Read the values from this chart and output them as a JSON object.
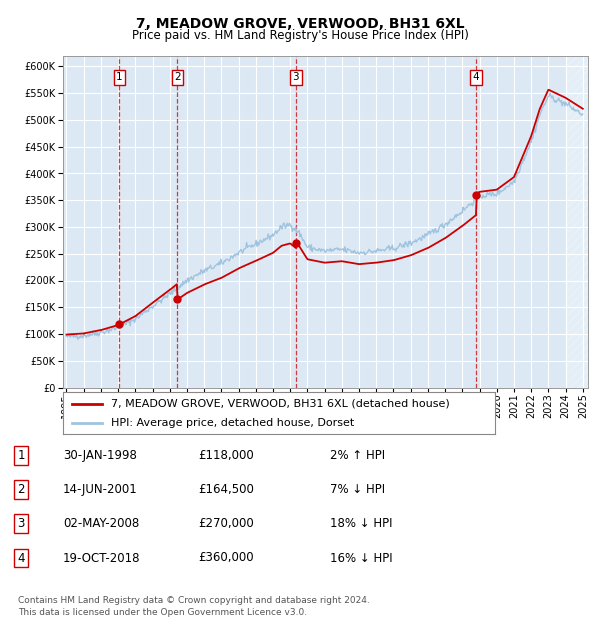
{
  "title": "7, MEADOW GROVE, VERWOOD, BH31 6XL",
  "subtitle": "Price paid vs. HM Land Registry's House Price Index (HPI)",
  "ylim": [
    0,
    620000
  ],
  "xlim_start": 1994.8,
  "xlim_end": 2025.3,
  "background_color": "#ffffff",
  "plot_bg_color": "#dce9f5",
  "grid_color": "#ffffff",
  "sale_dates_dec": [
    1998.08,
    2001.45,
    2008.33,
    2018.8
  ],
  "sale_prices": [
    118000,
    164500,
    270000,
    360000
  ],
  "sale_labels": [
    "1",
    "2",
    "3",
    "4"
  ],
  "legend_line1": "7, MEADOW GROVE, VERWOOD, BH31 6XL (detached house)",
  "legend_line2": "HPI: Average price, detached house, Dorset",
  "table_rows": [
    [
      "1",
      "30-JAN-1998",
      "£118,000",
      "2% ↑ HPI"
    ],
    [
      "2",
      "14-JUN-2001",
      "£164,500",
      "7% ↓ HPI"
    ],
    [
      "3",
      "02-MAY-2008",
      "£270,000",
      "18% ↓ HPI"
    ],
    [
      "4",
      "19-OCT-2018",
      "£360,000",
      "16% ↓ HPI"
    ]
  ],
  "footnote": "Contains HM Land Registry data © Crown copyright and database right 2024.\nThis data is licensed under the Open Government Licence v3.0.",
  "hpi_color": "#a0c4de",
  "sale_line_color": "#cc0000",
  "dashed_color": "#cc0000",
  "hpi_knots": [
    1995,
    1996,
    1997,
    1998,
    1999,
    2000,
    2001,
    2002,
    2003,
    2004,
    2005,
    2006,
    2007,
    2007.5,
    2008,
    2008.5,
    2009,
    2010,
    2011,
    2012,
    2013,
    2014,
    2015,
    2016,
    2017,
    2018,
    2019,
    2020,
    2021,
    2022,
    2022.5,
    2023,
    2024,
    2025
  ],
  "hpi_vals": [
    95000,
    97000,
    103000,
    112000,
    128000,
    152000,
    175000,
    200000,
    218000,
    232000,
    252000,
    268000,
    285000,
    300000,
    305000,
    290000,
    262000,
    255000,
    258000,
    252000,
    255000,
    260000,
    270000,
    285000,
    305000,
    330000,
    358000,
    362000,
    385000,
    460000,
    510000,
    545000,
    530000,
    510000
  ],
  "hpi_noise_seed": 42,
  "hpi_noise_std": 3000,
  "xtick_years": [
    1995,
    1996,
    1997,
    1998,
    1999,
    2000,
    2001,
    2002,
    2003,
    2004,
    2005,
    2006,
    2007,
    2008,
    2009,
    2010,
    2011,
    2012,
    2013,
    2014,
    2015,
    2016,
    2017,
    2018,
    2019,
    2020,
    2021,
    2022,
    2023,
    2024,
    2025
  ],
  "title_fontsize": 10,
  "subtitle_fontsize": 8.5,
  "tick_fontsize": 7,
  "legend_fontsize": 8,
  "table_fontsize": 8.5,
  "footnote_fontsize": 6.5,
  "hatch_start": 2024.0
}
